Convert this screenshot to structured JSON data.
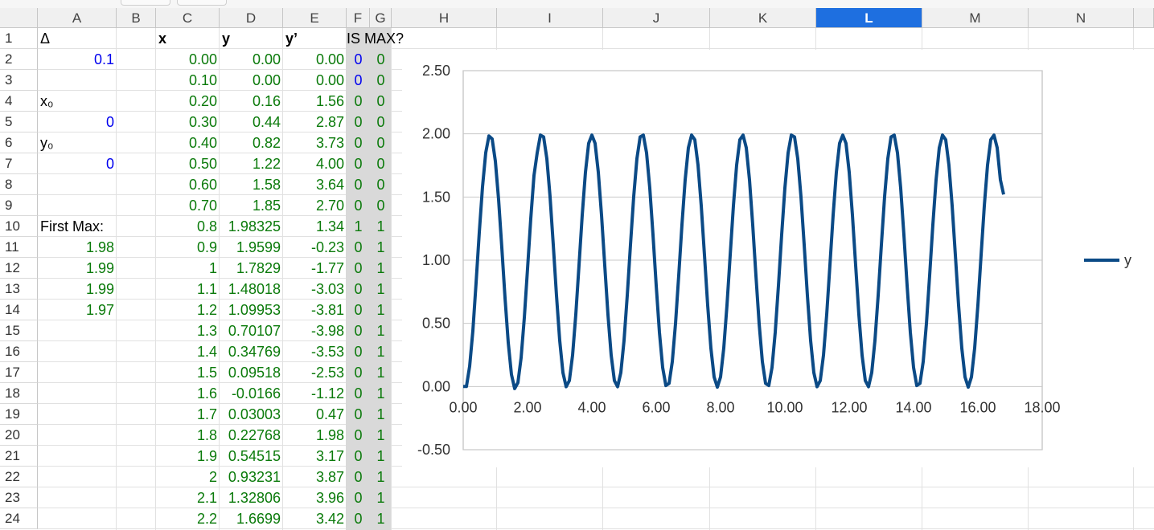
{
  "columns": [
    "A",
    "B",
    "C",
    "D",
    "E",
    "F",
    "G",
    "H",
    "I",
    "J",
    "K",
    "L",
    "M",
    "N"
  ],
  "selected_column": "L",
  "rows": [
    {
      "n": "1",
      "A": "Δ",
      "B": "",
      "C": "x",
      "D": "y",
      "E": "y’",
      "F": "IS MAX?",
      "G": ""
    },
    {
      "n": "2",
      "A": "0.1",
      "B": "",
      "C": "0.00",
      "D": "0.00",
      "E": "0.00",
      "F": "0",
      "G": "0"
    },
    {
      "n": "3",
      "A": "",
      "B": "",
      "C": "0.10",
      "D": "0.00",
      "E": "0.00",
      "F": "0",
      "G": "0"
    },
    {
      "n": "4",
      "A": "x₀",
      "B": "",
      "C": "0.20",
      "D": "0.16",
      "E": "1.56",
      "F": "0",
      "G": "0"
    },
    {
      "n": "5",
      "A": "0",
      "B": "",
      "C": "0.30",
      "D": "0.44",
      "E": "2.87",
      "F": "0",
      "G": "0"
    },
    {
      "n": "6",
      "A": "y₀",
      "B": "",
      "C": "0.40",
      "D": "0.82",
      "E": "3.73",
      "F": "0",
      "G": "0"
    },
    {
      "n": "7",
      "A": "0",
      "B": "",
      "C": "0.50",
      "D": "1.22",
      "E": "4.00",
      "F": "0",
      "G": "0"
    },
    {
      "n": "8",
      "A": "",
      "B": "",
      "C": "0.60",
      "D": "1.58",
      "E": "3.64",
      "F": "0",
      "G": "0"
    },
    {
      "n": "9",
      "A": "",
      "B": "",
      "C": "0.70",
      "D": "1.85",
      "E": "2.70",
      "F": "0",
      "G": "0"
    },
    {
      "n": "10",
      "A": "First Max:",
      "B": "",
      "C": "0.8",
      "D": "1.98325",
      "E": "1.34",
      "F": "1",
      "G": "1"
    },
    {
      "n": "11",
      "A": "1.98",
      "B": "",
      "C": "0.9",
      "D": "1.9599",
      "E": "-0.23",
      "F": "0",
      "G": "1"
    },
    {
      "n": "12",
      "A": "1.99",
      "B": "",
      "C": "1",
      "D": "1.7829",
      "E": "-1.77",
      "F": "0",
      "G": "1"
    },
    {
      "n": "13",
      "A": "1.99",
      "B": "",
      "C": "1.1",
      "D": "1.48018",
      "E": "-3.03",
      "F": "0",
      "G": "1"
    },
    {
      "n": "14",
      "A": "1.97",
      "B": "",
      "C": "1.2",
      "D": "1.09953",
      "E": "-3.81",
      "F": "0",
      "G": "1"
    },
    {
      "n": "15",
      "A": "",
      "B": "",
      "C": "1.3",
      "D": "0.70107",
      "E": "-3.98",
      "F": "0",
      "G": "1"
    },
    {
      "n": "16",
      "A": "",
      "B": "",
      "C": "1.4",
      "D": "0.34769",
      "E": "-3.53",
      "F": "0",
      "G": "1"
    },
    {
      "n": "17",
      "A": "",
      "B": "",
      "C": "1.5",
      "D": "0.09518",
      "E": "-2.53",
      "F": "0",
      "G": "1"
    },
    {
      "n": "18",
      "A": "",
      "B": "",
      "C": "1.6",
      "D": "-0.0166",
      "E": "-1.12",
      "F": "0",
      "G": "1"
    },
    {
      "n": "19",
      "A": "",
      "B": "",
      "C": "1.7",
      "D": "0.03003",
      "E": "0.47",
      "F": "0",
      "G": "1"
    },
    {
      "n": "20",
      "A": "",
      "B": "",
      "C": "1.8",
      "D": "0.22768",
      "E": "1.98",
      "F": "0",
      "G": "1"
    },
    {
      "n": "21",
      "A": "",
      "B": "",
      "C": "1.9",
      "D": "0.54515",
      "E": "3.17",
      "F": "0",
      "G": "1"
    },
    {
      "n": "22",
      "A": "",
      "B": "",
      "C": "2",
      "D": "0.93231",
      "E": "3.87",
      "F": "0",
      "G": "1"
    },
    {
      "n": "23",
      "A": "",
      "B": "",
      "C": "2.1",
      "D": "1.32806",
      "E": "3.96",
      "F": "0",
      "G": "1"
    },
    {
      "n": "24",
      "A": "",
      "B": "",
      "C": "2.2",
      "D": "1.6699",
      "E": "3.42",
      "F": "0",
      "G": "1"
    }
  ],
  "colors": {
    "input_blue": "#0000ee",
    "formula_green": "#0a7a0a",
    "series_blue": "#0b4a86",
    "header_selected": "#1e6fe0",
    "shade_gray": "#d9d9d9"
  },
  "chart_data": {
    "type": "line",
    "title": "",
    "xlabel": "",
    "ylabel": "",
    "xlim": [
      0,
      18
    ],
    "ylim": [
      -0.5,
      2.5
    ],
    "xticks": [
      "0.00",
      "2.00",
      "4.00",
      "6.00",
      "8.00",
      "10.00",
      "12.00",
      "14.00",
      "16.00",
      "18.00"
    ],
    "yticks": [
      "-0.50",
      "0.00",
      "0.50",
      "1.00",
      "1.50",
      "2.00",
      "2.50"
    ],
    "grid": "horizontal",
    "legend": "right",
    "series": [
      {
        "name": "y",
        "x_start": 0,
        "x_step": 0.1,
        "x_end": 16.8,
        "values_first_rows": [
          0.0,
          0.0,
          0.16,
          0.44,
          0.82,
          1.22,
          1.58,
          1.85,
          1.98325,
          1.9599,
          1.7829,
          1.48018,
          1.09953,
          0.70107,
          0.34769,
          0.09518,
          -0.0166,
          0.03003,
          0.22768,
          0.54515,
          0.93231,
          1.32806,
          1.6699
        ],
        "period_approx": 1.56,
        "peak_y": 1.99,
        "trough_y": -0.02,
        "final_y": 1.52
      }
    ]
  }
}
